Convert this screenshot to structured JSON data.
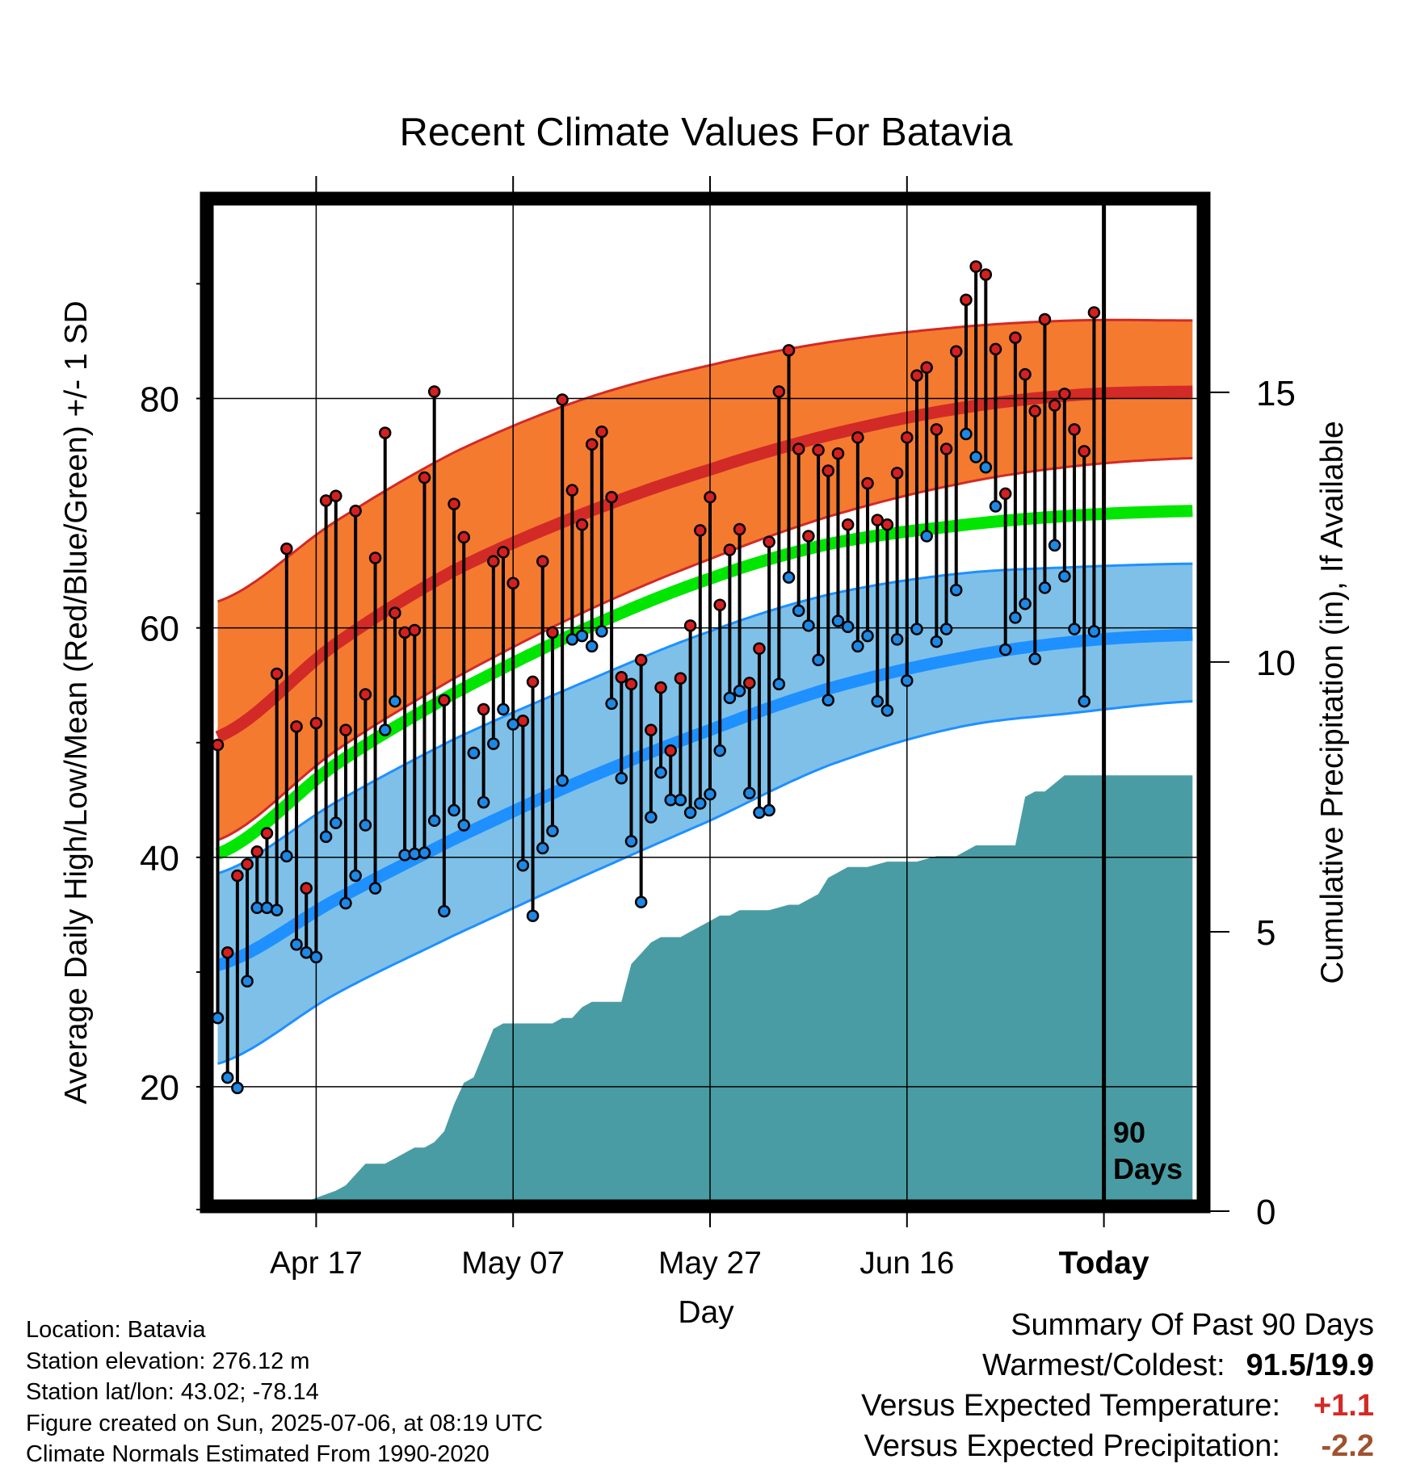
{
  "chart_data": {
    "type": "line",
    "title": "Recent Climate Values For Batavia",
    "xlabel": "Day",
    "ylabel": "Average Daily High/Low/Mean (Red/Blue/Green) +/- 1 SD",
    "y2label": "Cumulative Precipitation (in), If Available",
    "x_ticks": [
      {
        "label": "Apr 17",
        "day": 11
      },
      {
        "label": "May 07",
        "day": 31
      },
      {
        "label": "May 27",
        "day": 51
      },
      {
        "label": "Jun 16",
        "day": 71
      },
      {
        "label": "Today",
        "day": 91
      }
    ],
    "x_range_days": [
      1,
      100
    ],
    "ylim": [
      10,
      97
    ],
    "yticks_major": [
      20,
      40,
      60,
      80
    ],
    "yticks_minor": [
      30,
      50,
      70,
      90
    ],
    "y2lim": [
      0,
      18.5
    ],
    "y2ticks": [
      0,
      5,
      10,
      15
    ],
    "grid": true,
    "today_marker": {
      "label_line1": "90",
      "label_line2": "Days"
    },
    "normals": {
      "high_mean": [
        50.5,
        58.6,
        65.0,
        69.9,
        73.8,
        76.8,
        79.1,
        80.3,
        80.6
      ],
      "high_sd_upper": [
        62.3,
        69.3,
        75.3,
        79.9,
        82.9,
        84.9,
        86.2,
        86.8,
        86.8
      ],
      "high_sd_lower": [
        41.5,
        49.3,
        55.6,
        61.3,
        66.0,
        69.7,
        72.5,
        74.1,
        74.8
      ],
      "mean": [
        40.3,
        48.1,
        54.3,
        59.8,
        64.3,
        67.3,
        68.9,
        69.8,
        70.2
      ],
      "low_mean": [
        30.6,
        36.3,
        41.6,
        46.7,
        51.1,
        54.7,
        57.3,
        58.8,
        59.4
      ],
      "low_sd_upper": [
        38.6,
        44.8,
        50.3,
        55.2,
        59.7,
        62.9,
        64.7,
        65.3,
        65.6
      ],
      "low_sd_lower": [
        22.0,
        28.1,
        33.2,
        38.3,
        43.2,
        48.0,
        51.3,
        52.6,
        53.6
      ],
      "normal_days": [
        1,
        13,
        25,
        38,
        51,
        63,
        76,
        88,
        100
      ]
    },
    "series": [
      {
        "name": "High",
        "values": [
          49.8,
          31.7,
          38.4,
          39.4,
          40.5,
          42.1,
          56.0,
          66.9,
          51.4,
          37.3,
          51.7,
          71.1,
          71.5,
          51.1,
          70.2,
          54.2,
          66.1,
          77.0,
          61.3,
          59.6,
          59.8,
          73.1,
          80.6,
          53.7,
          70.8,
          67.9,
          49.1,
          52.9,
          65.8,
          66.6,
          63.9,
          51.9,
          55.3,
          65.8,
          59.6,
          79.9,
          72.0,
          69.0,
          76.0,
          77.1,
          71.4,
          55.7,
          55.1,
          57.2,
          51.1,
          54.8,
          49.3,
          55.6,
          60.2,
          68.5,
          71.4,
          62.0,
          66.8,
          68.6,
          55.2,
          58.2,
          67.5,
          80.6,
          84.2,
          75.6,
          68.0,
          75.5,
          73.7,
          75.2,
          69.0,
          76.6,
          72.6,
          69.4,
          69.0,
          73.5,
          76.6,
          82.0,
          82.7,
          77.3,
          75.6,
          84.1,
          88.6,
          91.5,
          90.8,
          84.3,
          71.7,
          85.3,
          82.1,
          78.9,
          86.9,
          79.4,
          80.4,
          77.3,
          75.4,
          87.5
        ]
      },
      {
        "name": "Low",
        "values": [
          26.0,
          20.8,
          19.9,
          29.2,
          35.6,
          35.6,
          35.4,
          40.1,
          32.4,
          31.7,
          31.3,
          41.8,
          43.0,
          36.0,
          38.4,
          42.8,
          37.3,
          51.1,
          53.6,
          40.2,
          40.3,
          40.4,
          43.2,
          35.3,
          44.1,
          42.8,
          49.1,
          44.8,
          49.9,
          52.9,
          51.6,
          39.3,
          34.9,
          40.8,
          42.3,
          46.7,
          59.0,
          59.3,
          58.4,
          59.7,
          53.4,
          46.9,
          41.4,
          36.1,
          43.5,
          47.4,
          45.0,
          45.0,
          43.9,
          44.7,
          45.5,
          49.3,
          53.9,
          54.5,
          45.6,
          43.9,
          44.1,
          55.1,
          64.4,
          61.5,
          60.2,
          57.2,
          53.7,
          60.6,
          60.1,
          58.4,
          59.3,
          53.6,
          52.8,
          59.0,
          55.4,
          59.9,
          68.0,
          58.8,
          59.9,
          63.3,
          76.9,
          74.9,
          74.0,
          70.6,
          58.1,
          60.9,
          62.1,
          57.3,
          63.5,
          67.2,
          64.5,
          59.9,
          53.6,
          59.7
        ]
      },
      {
        "name": "Precip",
        "days": [
          1,
          10,
          13,
          14,
          15,
          16,
          17,
          18,
          19,
          20,
          21,
          22,
          23,
          24,
          25,
          26,
          27,
          29,
          30,
          31,
          32,
          34,
          35,
          36,
          37,
          38,
          39,
          40,
          41,
          42,
          43,
          44,
          45,
          46,
          47,
          48,
          49,
          50,
          51,
          52,
          53,
          54,
          55,
          57,
          59,
          60,
          61,
          62,
          63,
          65,
          67,
          69,
          70,
          72,
          74,
          76,
          78,
          80,
          81,
          82,
          83,
          84,
          85,
          87,
          90,
          92,
          95,
          97,
          100
        ],
        "values": [
          0,
          0,
          0.2,
          0.3,
          0.5,
          0.7,
          0.7,
          0.7,
          0.8,
          0.9,
          1.0,
          1.0,
          1.1,
          1.3,
          1.8,
          2.2,
          2.3,
          3.2,
          3.3,
          3.3,
          3.3,
          3.3,
          3.3,
          3.4,
          3.4,
          3.6,
          3.7,
          3.7,
          3.7,
          3.7,
          4.4,
          4.6,
          4.8,
          4.9,
          4.9,
          4.9,
          5.0,
          5.1,
          5.2,
          5.3,
          5.3,
          5.4,
          5.4,
          5.4,
          5.5,
          5.5,
          5.6,
          5.7,
          6.0,
          6.2,
          6.2,
          6.3,
          6.3,
          6.3,
          6.4,
          6.4,
          6.6,
          6.6,
          6.6,
          6.6,
          7.5,
          7.6,
          7.6,
          7.9,
          7.9,
          7.9,
          7.9,
          7.9,
          7.9
        ]
      }
    ]
  },
  "info": {
    "location": "Location: Batavia",
    "elevation": "Station elevation: 276.12 m",
    "latlon": "Station lat/lon: 43.02; -78.14",
    "created": "Figure created on Sun, 2025-07-06, at 08:19 UTC",
    "normals": "Climate Normals Estimated From 1990-2020"
  },
  "summary": {
    "title": "Summary Of Past 90 Days",
    "warm_cold_label": "Warmest/Coldest:",
    "warm_cold_value": "91.5/19.9",
    "temp_label": "Versus Expected Temperature:",
    "temp_value": "+1.1",
    "precip_label": "Versus Expected Precipitation:",
    "precip_value": "-2.2"
  },
  "colors": {
    "high_band": "#f47a30",
    "high_line": "#d22a26",
    "low_band": "#7ec0e8",
    "low_line": "#1e90ff",
    "mean_line": "#00e600",
    "precip": "#4a9ca4",
    "temp_value": "#d22a26",
    "precip_value": "#a0522d"
  }
}
